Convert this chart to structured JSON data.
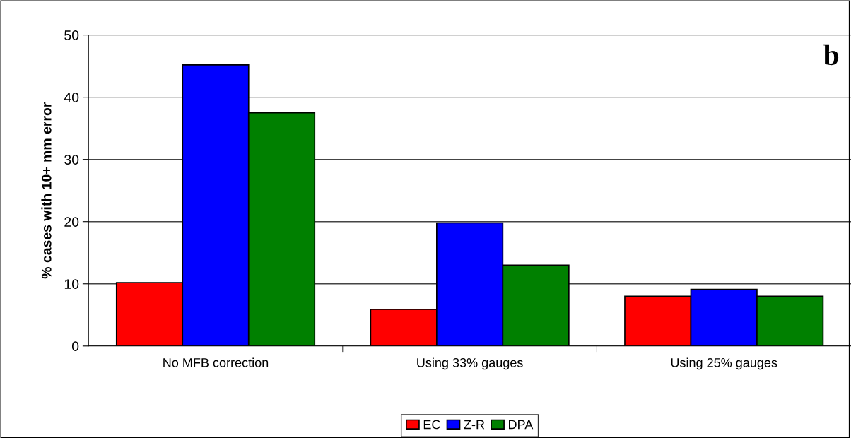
{
  "chart_data": {
    "type": "bar",
    "ylabel": "% cases with 10+ mm error",
    "annotations": [
      "b"
    ],
    "categories": [
      "No MFB correction",
      "Using 33% gauges",
      "Using 25% gauges"
    ],
    "series": [
      {
        "name": "EC",
        "color": "#ff0000",
        "values": [
          10.2,
          5.9,
          8.0
        ]
      },
      {
        "name": "Z-R",
        "color": "#0000ff",
        "values": [
          45.2,
          19.8,
          9.1
        ]
      },
      {
        "name": "DPA",
        "color": "#008000",
        "values": [
          37.5,
          13.0,
          8.0
        ]
      }
    ],
    "ylim": [
      0,
      50
    ],
    "yticks": [
      0,
      10,
      20,
      30,
      40,
      50
    ],
    "grid": "y",
    "legend": "bottom"
  }
}
